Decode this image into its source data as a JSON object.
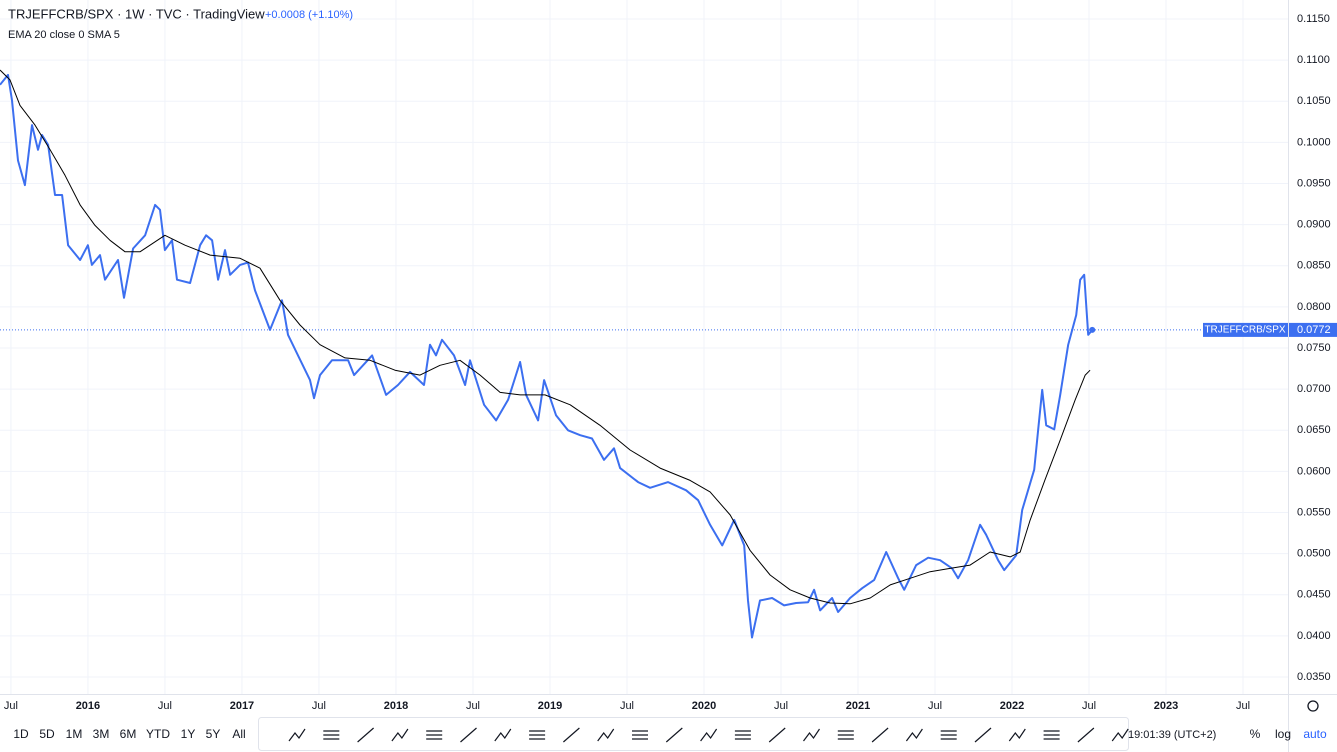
{
  "chart_data": {
    "type": "line",
    "title": "TRJEFFCRB/SPX · 1W · TVC · TradingView",
    "change": "+0.0008 (+1.10%)",
    "indicator": "EMA 20 close 0 SMA 5",
    "symbol": "TRJEFFCRB/SPX",
    "grid": true,
    "log_scale": false,
    "xlim": [
      2015.429,
      2023.792
    ],
    "ylim": [
      0.035,
      0.115
    ],
    "xticks": [
      {
        "value": 2015.5,
        "label": "Jul"
      },
      2016,
      {
        "value": 2016.5,
        "label": "Jul"
      },
      2017,
      {
        "value": 2017.5,
        "label": "Jul"
      },
      2018,
      {
        "value": 2018.5,
        "label": "Jul"
      },
      2019,
      {
        "value": 2019.5,
        "label": "Jul"
      },
      2020,
      {
        "value": 2020.5,
        "label": "Jul"
      },
      2021,
      {
        "value": 2021.5,
        "label": "Jul"
      },
      2022,
      {
        "value": 2022.5,
        "label": "Jul"
      },
      2023,
      {
        "value": 2023.5,
        "label": "Jul"
      }
    ],
    "yticks": [
      {
        "value": 0.115,
        "label": "0.1150"
      },
      {
        "value": 0.11,
        "label": "0.1100"
      },
      {
        "value": 0.105,
        "label": "0.1050"
      },
      {
        "value": 0.1,
        "label": "0.1000"
      },
      {
        "value": 0.095,
        "label": "0.0950"
      },
      {
        "value": 0.09,
        "label": "0.0900"
      },
      {
        "value": 0.085,
        "label": "0.0850"
      },
      {
        "value": 0.08,
        "label": "0.0800"
      },
      {
        "value": 0.075,
        "label": "0.0750"
      },
      {
        "value": 0.07,
        "label": "0.0700"
      },
      {
        "value": 0.065,
        "label": "0.0650"
      },
      {
        "value": 0.06,
        "label": "0.0600"
      },
      {
        "value": 0.055,
        "label": "0.0550"
      },
      {
        "value": 0.05,
        "label": "0.0500"
      },
      {
        "value": 0.045,
        "label": "0.0450"
      },
      {
        "value": 0.04,
        "label": "0.0400"
      },
      {
        "value": 0.035,
        "label": "0.0350"
      }
    ],
    "series": [
      {
        "name": "TRJEFFCRB/SPX",
        "color": "#3c6ff0",
        "width": 2,
        "x": [
          2015.429,
          2015.481,
          2015.507,
          2015.546,
          2015.591,
          2015.637,
          2015.676,
          2015.702,
          2015.741,
          2015.786,
          2015.832,
          2015.871,
          2015.949,
          2016.0,
          2016.026,
          2016.078,
          2016.111,
          2016.195,
          2016.234,
          2016.293,
          2016.371,
          2016.436,
          2016.468,
          2016.5,
          2016.546,
          2016.578,
          2016.663,
          2016.728,
          2016.767,
          2016.806,
          2016.845,
          2016.89,
          2016.923,
          2016.988,
          2017.039,
          2017.085,
          2017.182,
          2017.26,
          2017.299,
          2017.364,
          2017.442,
          2017.468,
          2017.507,
          2017.585,
          2017.689,
          2017.728,
          2017.845,
          2017.936,
          2018.013,
          2018.091,
          2018.182,
          2018.221,
          2018.26,
          2018.299,
          2018.377,
          2018.449,
          2018.481,
          2018.572,
          2018.65,
          2018.728,
          2018.806,
          2018.845,
          2018.923,
          2018.962,
          2019.04,
          2019.117,
          2019.196,
          2019.273,
          2019.351,
          2019.416,
          2019.455,
          2019.572,
          2019.65,
          2019.767,
          2019.884,
          2019.962,
          2020.04,
          2020.118,
          2020.196,
          2020.261,
          2020.286,
          2020.312,
          2020.364,
          2020.442,
          2020.52,
          2020.598,
          2020.676,
          2020.715,
          2020.754,
          2020.832,
          2020.871,
          2020.949,
          2021.027,
          2021.105,
          2021.183,
          2021.261,
          2021.3,
          2021.378,
          2021.456,
          2021.533,
          2021.611,
          2021.65,
          2021.715,
          2021.793,
          2021.832,
          2021.91,
          2021.949,
          2022.027,
          2022.066,
          2022.144,
          2022.17,
          2022.196,
          2022.222,
          2022.274,
          2022.313,
          2022.365,
          2022.417,
          2022.443,
          2022.469,
          2022.495,
          2022.521
        ],
        "values": [
          0.107,
          0.1082,
          0.1051,
          0.0978,
          0.0948,
          0.1021,
          0.0991,
          0.1009,
          0.0997,
          0.0936,
          0.0936,
          0.0875,
          0.0857,
          0.0875,
          0.0851,
          0.0863,
          0.0833,
          0.0857,
          0.0811,
          0.0871,
          0.0887,
          0.0924,
          0.0918,
          0.0869,
          0.0881,
          0.0833,
          0.0829,
          0.0875,
          0.0887,
          0.0881,
          0.0833,
          0.0869,
          0.0839,
          0.0851,
          0.0854,
          0.082,
          0.0772,
          0.0808,
          0.0766,
          0.0741,
          0.0711,
          0.0689,
          0.0717,
          0.0735,
          0.0735,
          0.0717,
          0.0741,
          0.0693,
          0.0705,
          0.0721,
          0.0705,
          0.0754,
          0.0741,
          0.076,
          0.0741,
          0.0705,
          0.0735,
          0.0681,
          0.0662,
          0.0687,
          0.0733,
          0.0693,
          0.0662,
          0.0711,
          0.0668,
          0.065,
          0.0644,
          0.064,
          0.0614,
          0.0628,
          0.0604,
          0.0587,
          0.058,
          0.0587,
          0.0577,
          0.0565,
          0.0535,
          0.051,
          0.0541,
          0.051,
          0.0443,
          0.0398,
          0.0443,
          0.0446,
          0.0437,
          0.044,
          0.0441,
          0.0456,
          0.0431,
          0.0446,
          0.0429,
          0.0446,
          0.0458,
          0.0468,
          0.0502,
          0.047,
          0.0456,
          0.0486,
          0.0495,
          0.0492,
          0.0482,
          0.047,
          0.0492,
          0.0535,
          0.0523,
          0.0492,
          0.048,
          0.0498,
          0.0553,
          0.0602,
          0.0651,
          0.0699,
          0.0656,
          0.0651,
          0.0693,
          0.0754,
          0.079,
          0.0833,
          0.0839,
          0.0766,
          0.0772
        ]
      },
      {
        "name": "EMA 20",
        "color": "#000000",
        "width": 1,
        "x": [
          2015.429,
          2015.494,
          2015.559,
          2015.656,
          2015.754,
          2015.851,
          2015.949,
          2016.046,
          2016.143,
          2016.241,
          2016.338,
          2016.5,
          2016.63,
          2016.793,
          2016.988,
          2017.117,
          2017.247,
          2017.377,
          2017.507,
          2017.669,
          2017.832,
          2017.994,
          2018.156,
          2018.286,
          2018.416,
          2018.546,
          2018.676,
          2018.806,
          2018.968,
          2019.131,
          2019.325,
          2019.52,
          2019.715,
          2019.91,
          2020.04,
          2020.17,
          2020.299,
          2020.429,
          2020.559,
          2020.689,
          2020.819,
          2020.949,
          2021.079,
          2021.209,
          2021.338,
          2021.468,
          2021.598,
          2021.728,
          2021.858,
          2021.988,
          2022.053,
          2022.118,
          2022.215,
          2022.313,
          2022.41,
          2022.475,
          2022.507
        ],
        "values": [
          0.1088,
          0.1076,
          0.1045,
          0.1021,
          0.0991,
          0.096,
          0.0924,
          0.0899,
          0.0881,
          0.0867,
          0.0867,
          0.0887,
          0.0875,
          0.0863,
          0.0859,
          0.0847,
          0.0808,
          0.0778,
          0.0754,
          0.0738,
          0.0735,
          0.0723,
          0.0717,
          0.0729,
          0.0735,
          0.0717,
          0.0696,
          0.0693,
          0.0693,
          0.0681,
          0.0656,
          0.0626,
          0.0604,
          0.0589,
          0.0575,
          0.0547,
          0.0504,
          0.0474,
          0.0456,
          0.0446,
          0.044,
          0.0439,
          0.0446,
          0.0462,
          0.047,
          0.0478,
          0.0482,
          0.0486,
          0.0502,
          0.0496,
          0.0502,
          0.0541,
          0.059,
          0.0638,
          0.0687,
          0.0717,
          0.0723
        ]
      }
    ]
  },
  "toolbar": {
    "ranges": [
      "1D",
      "5D",
      "1M",
      "3M",
      "6M",
      "YTD",
      "1Y",
      "5Y",
      "All"
    ],
    "clock": "19:01:39 (UTC+2)",
    "percent": "%",
    "log": "log",
    "auto": "auto"
  }
}
